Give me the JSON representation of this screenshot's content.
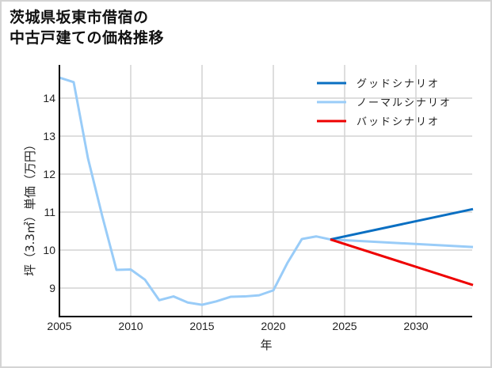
{
  "title_line1": "茨城県坂東市借宿の",
  "title_line2": "中古戸建ての価格推移",
  "chart_data": {
    "type": "line",
    "title": "茨城県坂東市借宿の中古戸建ての価格推移",
    "xlabel": "年",
    "ylabel": "坪（3.3㎡）単価（万円）",
    "xlim": [
      2005,
      2034
    ],
    "ylim": [
      8.3,
      14.9
    ],
    "xticks": [
      2005,
      2010,
      2015,
      2020,
      2025,
      2030
    ],
    "yticks": [
      9,
      10,
      11,
      12,
      13,
      14
    ],
    "grid": true,
    "legend_position": "upper right",
    "series": [
      {
        "name": "グッドシナリオ",
        "color": "#0a6fc2",
        "x": [
          2024,
          2034
        ],
        "values": [
          10.28,
          11.08
        ]
      },
      {
        "name": "ノーマルシナリオ",
        "color": "#99ccf8",
        "x": [
          2005,
          2006,
          2007,
          2008,
          2009,
          2010,
          2011,
          2012,
          2013,
          2014,
          2015,
          2016,
          2017,
          2018,
          2019,
          2020,
          2021,
          2022,
          2023,
          2024,
          2034
        ],
        "values": [
          14.54,
          14.42,
          12.42,
          10.9,
          9.48,
          9.49,
          9.22,
          8.68,
          8.78,
          8.62,
          8.56,
          8.65,
          8.77,
          8.78,
          8.81,
          8.94,
          9.67,
          10.29,
          10.36,
          10.28,
          10.08
        ]
      },
      {
        "name": "バッドシナリオ",
        "color": "#ee0000",
        "x": [
          2024,
          2034
        ],
        "values": [
          10.28,
          9.08
        ]
      }
    ]
  }
}
